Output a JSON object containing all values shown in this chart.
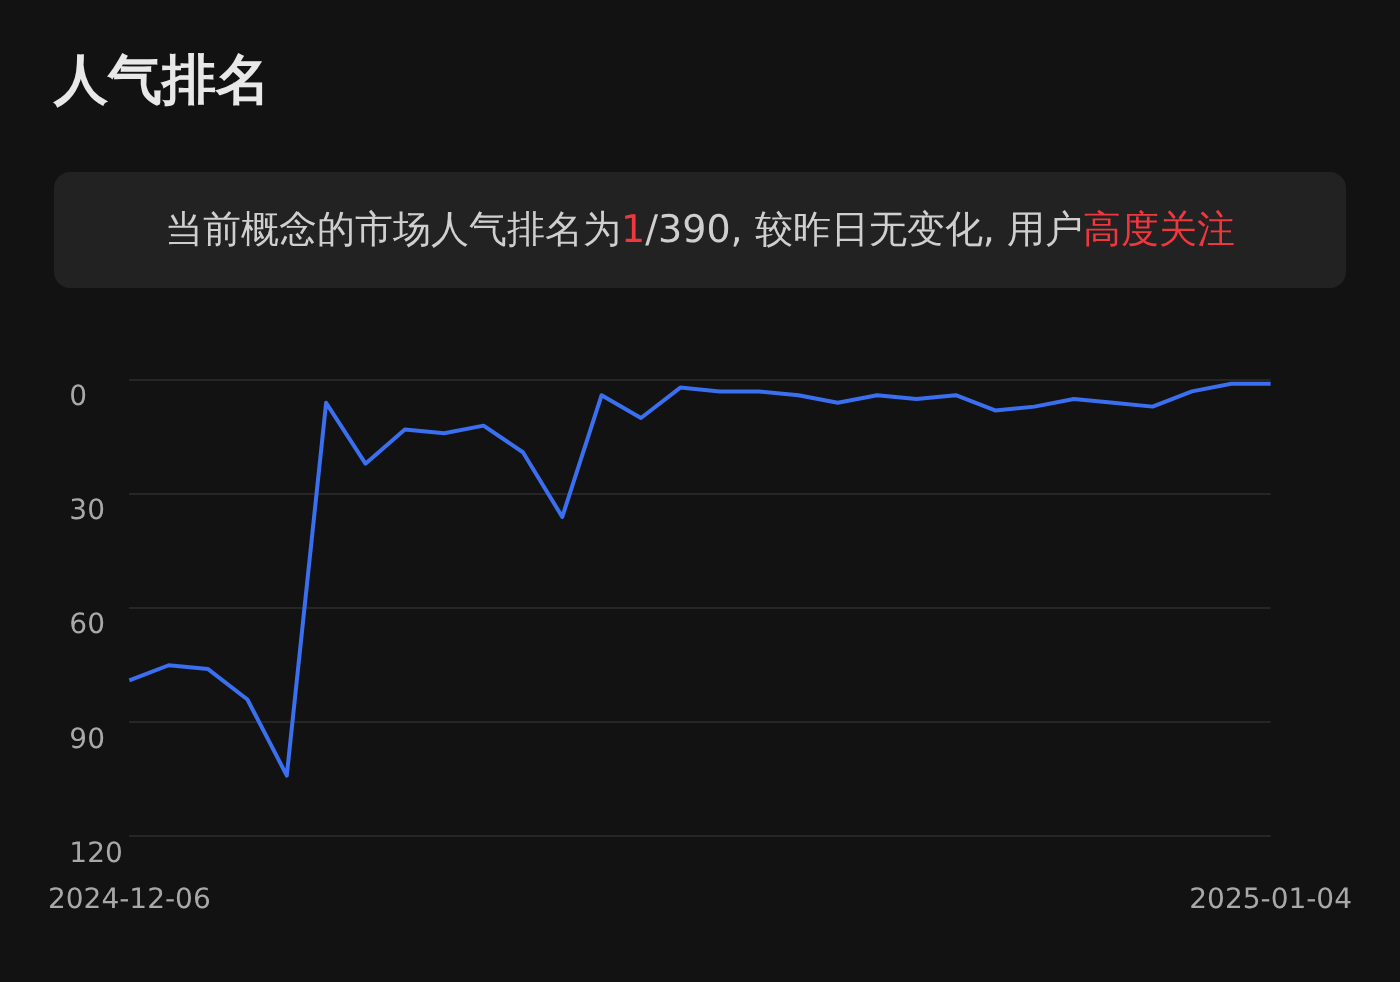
{
  "chart_data": {
    "type": "line",
    "title": "人气排名",
    "subtitle": "当前概念的市场人气排名为1/390, 较昨日无变化, 用户高度关注",
    "categories": [
      "2024-12-06",
      null,
      null,
      null,
      null,
      null,
      null,
      null,
      null,
      null,
      null,
      null,
      null,
      null,
      null,
      null,
      null,
      null,
      null,
      null,
      null,
      null,
      null,
      null,
      null,
      null,
      null,
      null,
      null,
      "2025-01-04"
    ],
    "series": [
      {
        "color": "#3a6ff0",
        "values": [
          79,
          75,
          76,
          84,
          104,
          6,
          22,
          13,
          14,
          12,
          19,
          36,
          4,
          10,
          2,
          3,
          3,
          4,
          6,
          4,
          5,
          4,
          8,
          7,
          5,
          6,
          7,
          3,
          1,
          1
        ]
      }
    ],
    "ylim": [
      120,
      0
    ],
    "yticks": [
      0,
      30,
      60,
      90,
      120
    ],
    "grid": "y",
    "legend": false,
    "marker": "none",
    "line_style": "solid"
  }
}
